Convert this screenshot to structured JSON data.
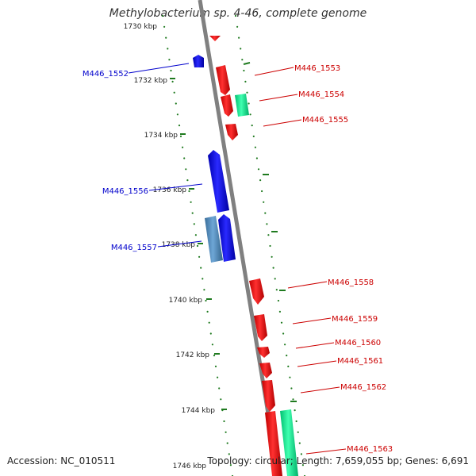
{
  "title": "Methylobacterium sp. 4-46, complete genome",
  "accession": "Accession: NC_010511",
  "summary": "Topology: circular; Length: 7,659,055 bp; Genes: 6,691",
  "colors": {
    "backbone": "#7a7a7a",
    "ruler": "#1f7a1f",
    "forward_gene": "#ff0000",
    "reverse_gene": "#0000ff",
    "rna_gene": "#00e68a",
    "other_gene": "#4a86b8",
    "forward_label": "#cc0000",
    "reverse_label": "#0000cc"
  },
  "ruler_ticks": [
    "1730 kbp",
    "1732 kbp",
    "1734 kbp",
    "1736 kbp",
    "1738 kbp",
    "1740 kbp",
    "1742 kbp",
    "1744 kbp",
    "1746 kbp"
  ],
  "gene_labels": {
    "reverse": [
      "M446_1552",
      "M446_1556",
      "M446_1557"
    ],
    "forward": [
      "M446_1553",
      "M446_1554",
      "M446_1555",
      "M446_1558",
      "M446_1559",
      "M446_1560",
      "M446_1561",
      "M446_1562",
      "M446_1563"
    ]
  }
}
